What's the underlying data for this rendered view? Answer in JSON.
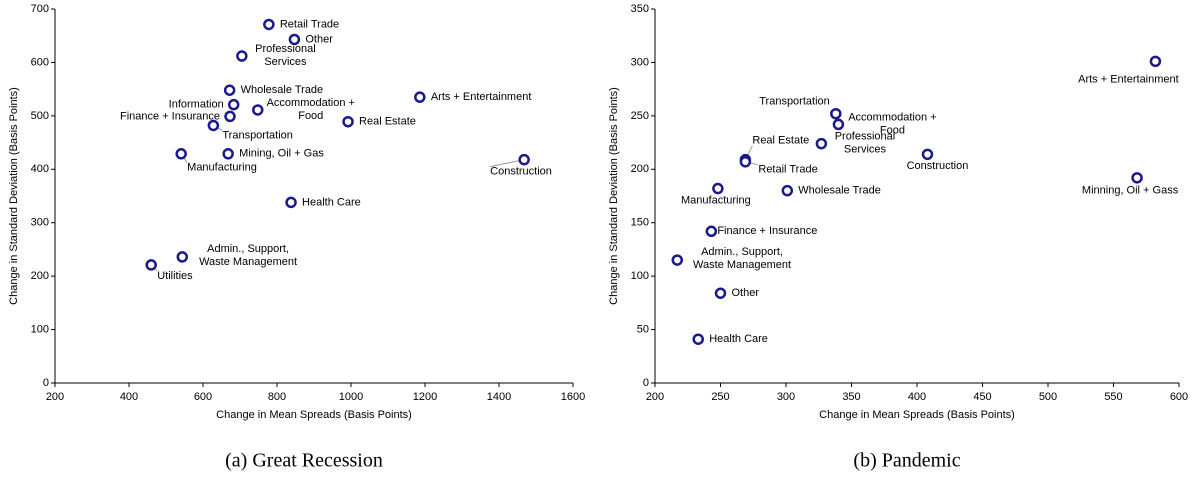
{
  "chart_data": [
    {
      "type": "scatter",
      "caption": "(a) Great Recession",
      "x_label": "Change in Mean Spreads (Basis Points)",
      "y_label": "Change in Standard Deviation (Basis Points)",
      "xlim": [
        200,
        1600
      ],
      "ylim": [
        0,
        700
      ],
      "xticks": [
        200,
        400,
        600,
        800,
        1000,
        1200,
        1400,
        1600
      ],
      "yticks": [
        0,
        100,
        200,
        300,
        400,
        500,
        600,
        700
      ],
      "color": "#1a1a8c",
      "labels": [
        [
          "Retail Trade"
        ],
        [
          "Other"
        ],
        [
          "Professional",
          "Services"
        ],
        [
          "Wholesale Trade"
        ],
        [
          "Information"
        ],
        [
          "Finance + Insurance"
        ],
        [
          "Accommodation +",
          "Food"
        ],
        [
          "Arts + Entertainment"
        ],
        [
          "Real Estate"
        ],
        [
          "Transportation"
        ],
        [
          "Manufacturing"
        ],
        [
          "Mining, Oil + Gas"
        ],
        [
          "Construction"
        ],
        [
          "Health Care"
        ],
        [
          "Admin., Support,",
          "Waste Management"
        ],
        [
          "Utilities"
        ]
      ],
      "x": [
        778,
        847,
        705,
        672,
        683,
        673,
        748,
        1186,
        992,
        628,
        541,
        668,
        1468,
        838,
        544,
        460
      ],
      "values": [
        671,
        643,
        612,
        548,
        521,
        499,
        511,
        535,
        489,
        482,
        429,
        429,
        418,
        338,
        236,
        221
      ]
    },
    {
      "type": "scatter",
      "caption": "(b) Pandemic",
      "x_label": "Change in Mean Spreads (Basis Points)",
      "y_label": "Change in Standard Deviation (Basis Points)",
      "xlim": [
        200,
        600
      ],
      "ylim": [
        0,
        350
      ],
      "xticks": [
        200,
        250,
        300,
        350,
        400,
        450,
        500,
        550,
        600
      ],
      "yticks": [
        0,
        50,
        100,
        150,
        200,
        250,
        300,
        350
      ],
      "color": "#1a1a8c",
      "labels": [
        [
          "Arts + Entertainment"
        ],
        [
          "Transportation"
        ],
        [
          "Accommodation +",
          "Food"
        ],
        [
          "Professional",
          "Services"
        ],
        [
          "Construction"
        ],
        [
          "Real Estate"
        ],
        [
          "Retail Trade"
        ],
        [
          "Minning, Oil + Gass"
        ],
        [
          "Manufacturing"
        ],
        [
          "Wholesale Trade"
        ],
        [
          "Finance + Insurance"
        ],
        [
          "Admin., Support,",
          "Waste Management"
        ],
        [
          "Other"
        ],
        [
          "Health Care"
        ]
      ],
      "x": [
        582,
        338,
        340,
        327,
        408,
        269,
        269,
        568,
        248,
        301,
        243,
        217,
        250,
        233
      ],
      "values": [
        301,
        252,
        242,
        224,
        214,
        209,
        207,
        192,
        182,
        180,
        142,
        115,
        84,
        41
      ]
    }
  ]
}
